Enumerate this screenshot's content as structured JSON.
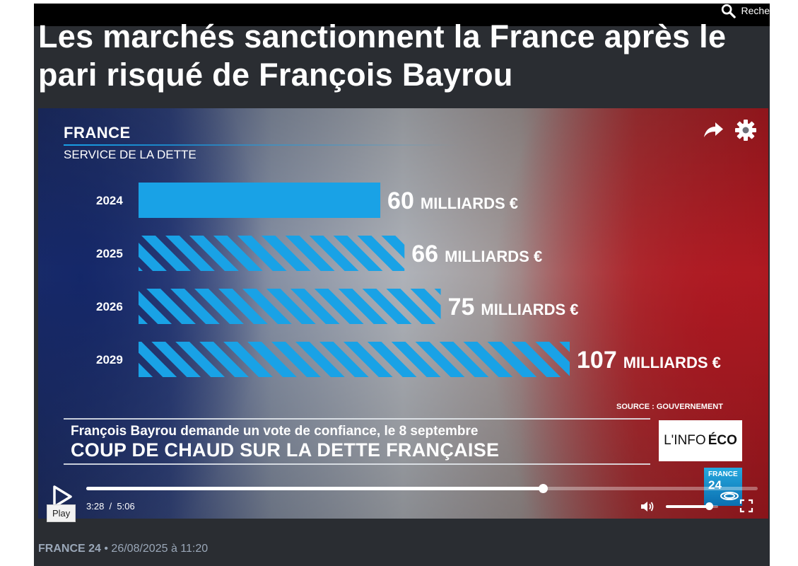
{
  "header": {
    "search_label": "Reche",
    "search_icon": "search-icon"
  },
  "article": {
    "headline": "Les marchés sanctionnent la France après le pari risqué de François Bayrou",
    "source": "FRANCE 24",
    "separator": "•",
    "date": "26/08/2025 à 11:20"
  },
  "video": {
    "graphic_title": "FRANCE",
    "graphic_subtitle": "SERVICE DE LA DETTE",
    "source_note": "SOURCE : GOUVERNEMENT",
    "lower_third_sub": "François Bayrou demande un vote de confiance, le 8 septembre",
    "lower_third_main": "COUP DE CHAUD SUR LA DETTE FRANÇAISE",
    "show_logo_light": "L'INFO",
    "show_logo_bold": "ÉCO",
    "channel_logo_top": "FRANCE",
    "channel_logo_bottom": "24",
    "controls": {
      "current_time": "3:28",
      "separator": "/",
      "duration": "5:06",
      "progress": 0.68,
      "volume": 0.82,
      "tooltip": "Play"
    },
    "colors": {
      "bar": "#19a2e6",
      "accent": "#19a0e6"
    }
  },
  "chart_data": {
    "type": "bar",
    "orientation": "horizontal",
    "categories": [
      "2024",
      "2025",
      "2026",
      "2029"
    ],
    "values": [
      60,
      66,
      75,
      107
    ],
    "value_labels": [
      "60",
      "66",
      "75",
      "107"
    ],
    "unit_label": "MILLIARDS €",
    "projected": [
      false,
      true,
      true,
      true
    ],
    "xlim": [
      0,
      107
    ],
    "grid": false
  }
}
